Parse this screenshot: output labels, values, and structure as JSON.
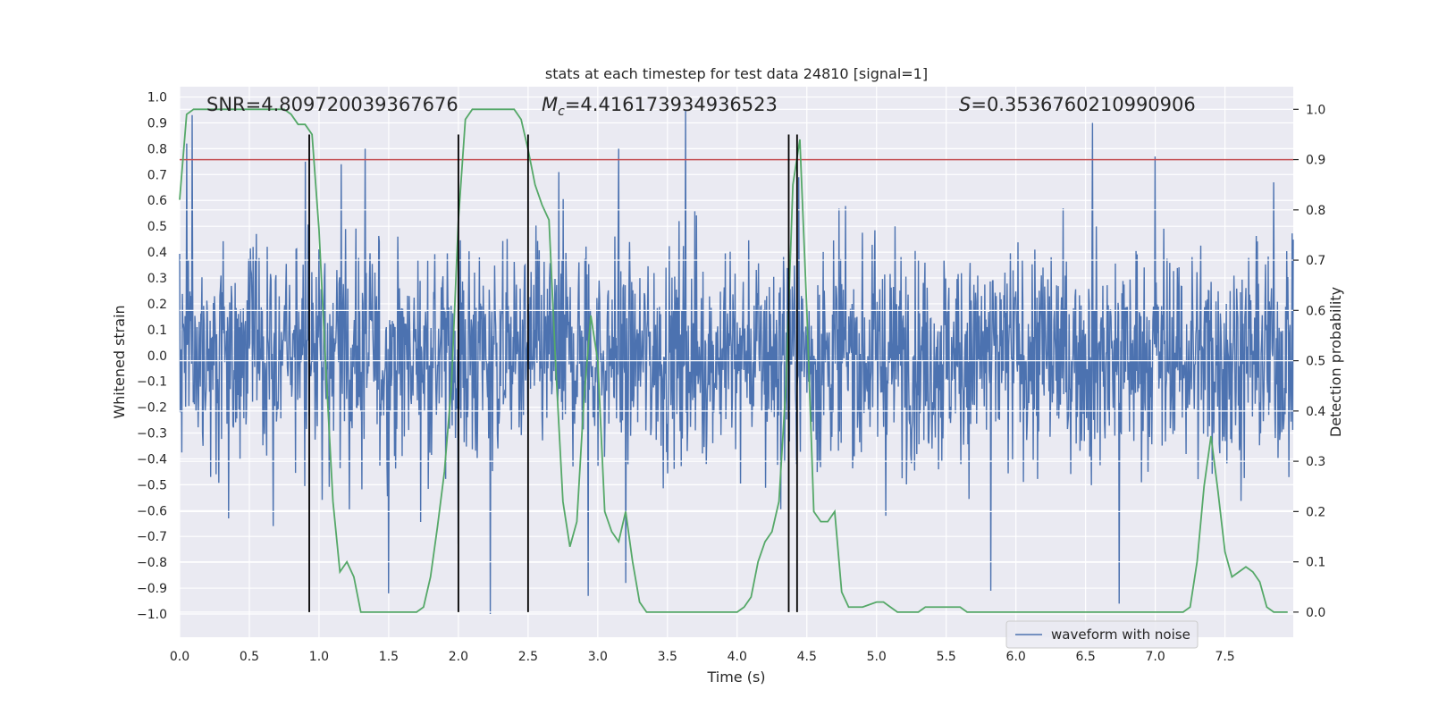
{
  "chart_data": {
    "type": "line",
    "title": "stats at each timestep for test data 24810 [signal=1]",
    "xlabel": "Time (s)",
    "ylabel_left": "Whitened strain",
    "ylabel_right": "Detection probability",
    "xlim": [
      0.0,
      7.99
    ],
    "ylim_left": [
      -1.09,
      1.04
    ],
    "ylim_right": [
      -0.05,
      1.045
    ],
    "x_ticks": [
      "0.0",
      "0.5",
      "1.0",
      "1.5",
      "2.0",
      "2.5",
      "3.0",
      "3.5",
      "4.0",
      "4.5",
      "5.0",
      "5.5",
      "6.0",
      "6.5",
      "7.0",
      "7.5"
    ],
    "x_tick_values": [
      0.0,
      0.5,
      1.0,
      1.5,
      2.0,
      2.5,
      3.0,
      3.5,
      4.0,
      4.5,
      5.0,
      5.5,
      6.0,
      6.5,
      7.0,
      7.5
    ],
    "y_left_ticks": [
      "1.0",
      "0.9",
      "0.8",
      "0.7",
      "0.6",
      "0.5",
      "0.4",
      "0.3",
      "0.2",
      "0.1",
      "0.0",
      "−0.1",
      "−0.2",
      "−0.3",
      "−0.4",
      "−0.5",
      "−0.6",
      "−0.7",
      "−0.8",
      "−0.9",
      "−1.0"
    ],
    "y_left_tick_values": [
      1.0,
      0.9,
      0.8,
      0.7,
      0.6,
      0.5,
      0.4,
      0.3,
      0.2,
      0.1,
      0.0,
      -0.1,
      -0.2,
      -0.3,
      -0.4,
      -0.5,
      -0.6,
      -0.7,
      -0.8,
      -0.9,
      -1.0
    ],
    "y_right_ticks": [
      "1.0",
      "0.9",
      "0.8",
      "0.7",
      "0.6",
      "0.5",
      "0.4",
      "0.3",
      "0.2",
      "0.1",
      "0.0"
    ],
    "y_right_tick_values": [
      1.0,
      0.9,
      0.8,
      0.7,
      0.6,
      0.5,
      0.4,
      0.3,
      0.2,
      0.1,
      0.0
    ],
    "annotations": {
      "snr": "SNR=4.809720039367676",
      "mc_symbol": "M",
      "mc_sub": "c",
      "mc_value": "=4.416173934936523",
      "s_symbol": "S",
      "s_value": "=0.3536760210990906"
    },
    "threshold": {
      "value": 0.9,
      "axis": "right",
      "color": "#c44e52"
    },
    "vertical_lines": [
      0.93,
      2.0,
      2.5,
      4.37,
      4.43
    ],
    "vertical_lines_range": [
      -1.0,
      0.95
    ],
    "waveform": {
      "name": "waveform with noise",
      "color": "#4c72b0",
      "samples": 2048,
      "typical_amplitude": 0.5,
      "peaks": [
        {
          "x": 0.05,
          "y": 0.82
        },
        {
          "x": 0.09,
          "y": 0.93
        },
        {
          "x": 0.35,
          "y": -0.63
        },
        {
          "x": 0.67,
          "y": -0.66
        },
        {
          "x": 0.9,
          "y": 0.75
        },
        {
          "x": 1.16,
          "y": 0.74
        },
        {
          "x": 1.33,
          "y": 0.8
        },
        {
          "x": 1.5,
          "y": -0.92
        },
        {
          "x": 2.0,
          "y": -0.73
        },
        {
          "x": 2.23,
          "y": -1.0
        },
        {
          "x": 2.72,
          "y": 0.71
        },
        {
          "x": 2.93,
          "y": -0.93
        },
        {
          "x": 3.15,
          "y": 0.8
        },
        {
          "x": 3.2,
          "y": -0.88
        },
        {
          "x": 3.63,
          "y": 0.95
        },
        {
          "x": 4.44,
          "y": 0.69
        },
        {
          "x": 5.82,
          "y": -0.91
        },
        {
          "x": 6.55,
          "y": 0.9
        },
        {
          "x": 6.74,
          "y": -0.96
        },
        {
          "x": 7.0,
          "y": 0.77
        },
        {
          "x": 7.42,
          "y": -0.3
        },
        {
          "x": 7.85,
          "y": 0.67
        }
      ]
    },
    "detection_probability": {
      "color": "#55a868",
      "x": [
        0.0,
        0.05,
        0.1,
        0.2,
        0.3,
        0.4,
        0.5,
        0.6,
        0.7,
        0.75,
        0.8,
        0.85,
        0.9,
        0.95,
        1.0,
        1.05,
        1.1,
        1.15,
        1.2,
        1.25,
        1.3,
        1.35,
        1.4,
        1.5,
        1.6,
        1.7,
        1.75,
        1.8,
        1.85,
        1.9,
        1.95,
        2.0,
        2.05,
        2.1,
        2.15,
        2.2,
        2.25,
        2.3,
        2.35,
        2.4,
        2.45,
        2.5,
        2.55,
        2.6,
        2.65,
        2.7,
        2.75,
        2.8,
        2.85,
        2.9,
        2.95,
        3.0,
        3.05,
        3.1,
        3.15,
        3.2,
        3.25,
        3.3,
        3.35,
        3.5,
        3.6,
        3.7,
        3.8,
        3.9,
        4.0,
        4.05,
        4.1,
        4.15,
        4.2,
        4.25,
        4.3,
        4.35,
        4.4,
        4.45,
        4.5,
        4.55,
        4.6,
        4.65,
        4.7,
        4.75,
        4.8,
        4.85,
        4.9,
        5.0,
        5.05,
        5.1,
        5.15,
        5.2,
        5.25,
        5.3,
        5.35,
        5.4,
        5.45,
        5.5,
        5.55,
        5.6,
        5.65,
        5.7,
        5.75,
        5.8,
        5.9,
        6.0,
        6.1,
        6.2,
        6.3,
        6.4,
        6.5,
        6.6,
        6.7,
        6.8,
        6.9,
        7.0,
        7.1,
        7.2,
        7.25,
        7.3,
        7.35,
        7.4,
        7.45,
        7.5,
        7.55,
        7.6,
        7.65,
        7.7,
        7.75,
        7.8,
        7.85,
        7.9,
        7.95
      ],
      "y": [
        0.82,
        0.99,
        1.0,
        1.0,
        1.0,
        1.0,
        1.0,
        1.0,
        1.0,
        1.0,
        0.99,
        0.97,
        0.97,
        0.95,
        0.76,
        0.48,
        0.22,
        0.08,
        0.1,
        0.07,
        0.0,
        0.0,
        0.0,
        0.0,
        0.0,
        0.0,
        0.01,
        0.07,
        0.17,
        0.28,
        0.45,
        0.78,
        0.98,
        1.0,
        1.0,
        1.0,
        1.0,
        1.0,
        1.0,
        1.0,
        0.98,
        0.92,
        0.85,
        0.81,
        0.78,
        0.48,
        0.22,
        0.13,
        0.18,
        0.42,
        0.59,
        0.5,
        0.2,
        0.16,
        0.14,
        0.2,
        0.1,
        0.02,
        0.0,
        0.0,
        0.0,
        0.0,
        0.0,
        0.0,
        0.0,
        0.01,
        0.03,
        0.1,
        0.14,
        0.16,
        0.22,
        0.45,
        0.85,
        0.94,
        0.6,
        0.2,
        0.18,
        0.18,
        0.2,
        0.04,
        0.01,
        0.01,
        0.01,
        0.02,
        0.02,
        0.01,
        0.0,
        0.0,
        0.0,
        0.0,
        0.01,
        0.01,
        0.01,
        0.01,
        0.01,
        0.01,
        0.0,
        0.0,
        0.0,
        0.0,
        0.0,
        0.0,
        0.0,
        0.0,
        0.0,
        0.0,
        0.0,
        0.0,
        0.0,
        0.0,
        0.0,
        0.0,
        0.0,
        0.0,
        0.01,
        0.1,
        0.25,
        0.35,
        0.24,
        0.12,
        0.07,
        0.08,
        0.09,
        0.08,
        0.06,
        0.01,
        0.0,
        0.0,
        0.0
      ]
    },
    "legend": {
      "entries": [
        "waveform with noise"
      ],
      "placement": "lower-right"
    },
    "grid": true
  }
}
